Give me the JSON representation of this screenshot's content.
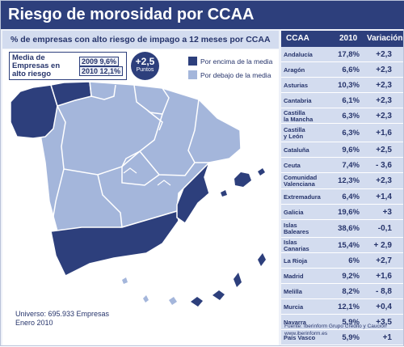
{
  "title": "Riesgo de morosidad por CCAA",
  "subtitle": "% de empresas con alto riesgo de impago a 12 meses por CCAA",
  "average_box": {
    "label": "Media de Empresas en alto riesgo",
    "y2009": "2009   9,6%",
    "y2010": "2010  12,1%"
  },
  "variation": {
    "value": "+2,5",
    "unit": "Puntos"
  },
  "legend": {
    "above": "Por encima de la media",
    "below": "Por debajo de la media"
  },
  "colors": {
    "above": "#2d3f7c",
    "below": "#a4b6db",
    "panel": "#d3dcef",
    "header": "#2d3f7c"
  },
  "universe": {
    "line1": "Universo: 695.933 Empresas",
    "line2": "Enero 2010"
  },
  "source": {
    "line1": "Fuente: Iberinform Grupo Crédito y Caución",
    "line2": "www.iberinform.es"
  },
  "table": {
    "headers": {
      "ccaa": "CCAA",
      "y2010": "2010",
      "var": "Variación"
    },
    "rows": [
      {
        "ccaa": [
          "Andalucía"
        ],
        "v2010": "17,8%",
        "var": "+2,3"
      },
      {
        "ccaa": [
          "Aragón"
        ],
        "v2010": "6,6%",
        "var": "+2,3"
      },
      {
        "ccaa": [
          "Asturias"
        ],
        "v2010": "10,3%",
        "var": "+2,3"
      },
      {
        "ccaa": [
          "Cantabria"
        ],
        "v2010": "6,1%",
        "var": "+2,3"
      },
      {
        "ccaa": [
          "Castilla",
          "la Mancha"
        ],
        "v2010": "6,3%",
        "var": "+2,3"
      },
      {
        "ccaa": [
          "Castilla",
          "y León"
        ],
        "v2010": "6,3%",
        "var": "+1,6"
      },
      {
        "ccaa": [
          "Cataluña"
        ],
        "v2010": "9,6%",
        "var": "+2,5"
      },
      {
        "ccaa": [
          "Ceuta"
        ],
        "v2010": "7,4%",
        "var": "- 3,6"
      },
      {
        "ccaa": [
          "Comunidad",
          "Valenciana"
        ],
        "v2010": "12,3%",
        "var": "+2,3"
      },
      {
        "ccaa": [
          "Extremadura"
        ],
        "v2010": "6,4%",
        "var": "+1,4"
      },
      {
        "ccaa": [
          "Galicia"
        ],
        "v2010": "19,6%",
        "var": "+3"
      },
      {
        "ccaa": [
          "Islas",
          "Baleares"
        ],
        "v2010": "38,6%",
        "var": "-0,1"
      },
      {
        "ccaa": [
          "Islas",
          "Canarias"
        ],
        "v2010": "15,4%",
        "var": "+ 2,9"
      },
      {
        "ccaa": [
          "La Rioja"
        ],
        "v2010": "6%",
        "var": "+2,7"
      },
      {
        "ccaa": [
          "Madrid"
        ],
        "v2010": "9,2%",
        "var": "+1,6"
      },
      {
        "ccaa": [
          "Melilla"
        ],
        "v2010": "8,2%",
        "var": "- 8,8"
      },
      {
        "ccaa": [
          "Murcia"
        ],
        "v2010": "12,1%",
        "var": "+0,4"
      },
      {
        "ccaa": [
          "Navarra"
        ],
        "v2010": "5,9%",
        "var": "+3,5"
      },
      {
        "ccaa": [
          "País Vasco"
        ],
        "v2010": "5,9%",
        "var": "+1"
      }
    ]
  },
  "chart_data": {
    "type": "table",
    "title": "Riesgo de morosidad por CCAA",
    "columns": [
      "CCAA",
      "2010",
      "Variación"
    ],
    "categories": [
      "Andalucía",
      "Aragón",
      "Asturias",
      "Cantabria",
      "Castilla la Mancha",
      "Castilla y León",
      "Cataluña",
      "Ceuta",
      "Comunidad Valenciana",
      "Extremadura",
      "Galicia",
      "Islas Baleares",
      "Islas Canarias",
      "La Rioja",
      "Madrid",
      "Melilla",
      "Murcia",
      "Navarra",
      "País Vasco"
    ],
    "series": [
      {
        "name": "2010",
        "values": [
          17.8,
          6.6,
          10.3,
          6.1,
          6.3,
          6.3,
          9.6,
          7.4,
          12.3,
          6.4,
          19.6,
          38.6,
          15.4,
          6,
          9.2,
          8.2,
          12.1,
          5.9,
          5.9
        ]
      },
      {
        "name": "Variación",
        "values": [
          2.3,
          2.3,
          2.3,
          2.3,
          2.3,
          1.6,
          2.5,
          -3.6,
          2.3,
          1.4,
          3,
          -0.1,
          2.9,
          2.7,
          1.6,
          -8.8,
          0.4,
          3.5,
          1
        ]
      }
    ],
    "average_2009": 9.6,
    "average_2010": 12.1
  }
}
